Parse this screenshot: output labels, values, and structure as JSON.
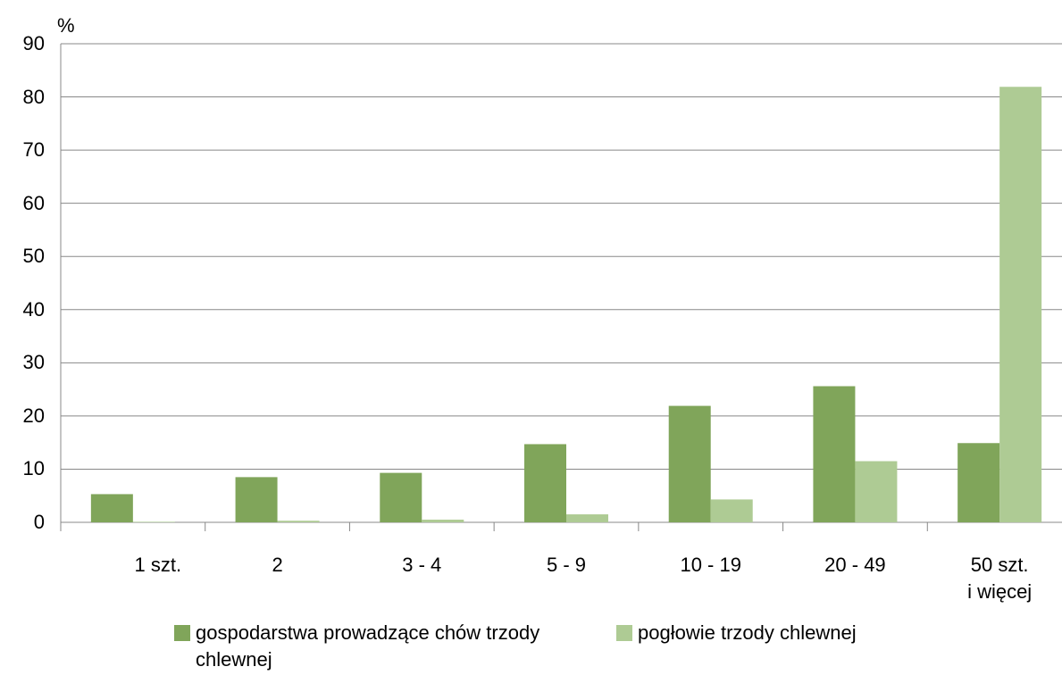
{
  "chart_data": {
    "type": "bar",
    "y_label": "%",
    "categories": [
      "1 szt.",
      "2",
      "3 - 4",
      "5 - 9",
      "10 - 19",
      "20 - 49",
      "50 szt.\ni więcej"
    ],
    "series": [
      {
        "name": "gospodarstwa prowadzące chów trzody chlewnej",
        "color": "#80a55a",
        "values": [
          5.3,
          8.5,
          9.3,
          14.7,
          21.9,
          25.6,
          14.9
        ]
      },
      {
        "name": "pogłowie trzody chlewnej",
        "color": "#aecb94",
        "values": [
          0.1,
          0.3,
          0.5,
          1.5,
          4.3,
          11.5,
          81.9
        ]
      }
    ],
    "ylim": [
      0,
      90
    ],
    "yticks": [
      0,
      10,
      20,
      30,
      40,
      50,
      60,
      70,
      80,
      90
    ],
    "grid": true,
    "legend": "bottom"
  }
}
